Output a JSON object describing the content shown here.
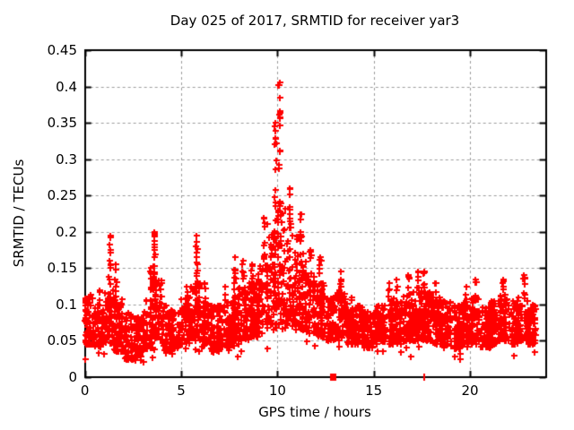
{
  "page": {
    "background": "#ffffff"
  },
  "chart_data": {
    "type": "scatter",
    "title": "Day 025 of 2017, SRMTID for receiver yar3",
    "xlabel": "GPS time / hours",
    "ylabel": "SRMTID / TECUs",
    "xlim": [
      0,
      23.94
    ],
    "ylim": [
      0,
      0.45
    ],
    "xticks": {
      "values": [
        0,
        5,
        10,
        15,
        20
      ],
      "labels": [
        "0",
        "5",
        "10",
        "15",
        "20"
      ]
    },
    "yticks": {
      "values": [
        0,
        0.05,
        0.1,
        0.15,
        0.2,
        0.25,
        0.3,
        0.35,
        0.4,
        0.45
      ],
      "labels": [
        "0",
        "0.05",
        "0.1",
        "0.15",
        "0.2",
        "0.25",
        "0.3",
        "0.35",
        "0.4",
        "0.45"
      ]
    },
    "grid": true,
    "grid_style": "dashed",
    "grid_color": "#9b9b9b",
    "axis_color": "#000000",
    "legend": "none",
    "marker": {
      "shape": "plus",
      "color": "#ff0000",
      "size": 7
    },
    "seed": 20170251,
    "bands_format": [
      "t_start_h",
      "t_end_h",
      "n_core_points",
      "y_low",
      "y_high",
      "n_spike_points",
      "y_max",
      "t_spike_center_h"
    ],
    "bands": [
      [
        0.0,
        0.5,
        70,
        0.045,
        0.115,
        0,
        0.13,
        0
      ],
      [
        0.5,
        1.0,
        65,
        0.04,
        0.1,
        3,
        0.12,
        0.75
      ],
      [
        1.0,
        1.5,
        65,
        0.045,
        0.12,
        12,
        0.195,
        1.3
      ],
      [
        1.5,
        2.0,
        65,
        0.035,
        0.11,
        7,
        0.155,
        1.6
      ],
      [
        2.0,
        2.5,
        60,
        0.025,
        0.09,
        0,
        0.1,
        0
      ],
      [
        2.5,
        3.0,
        60,
        0.03,
        0.085,
        0,
        0.095,
        0
      ],
      [
        3.0,
        3.5,
        65,
        0.04,
        0.11,
        6,
        0.15,
        3.4
      ],
      [
        3.5,
        4.0,
        65,
        0.05,
        0.14,
        14,
        0.2,
        3.6
      ],
      [
        4.0,
        4.5,
        60,
        0.035,
        0.1,
        0,
        0.11,
        0
      ],
      [
        4.5,
        5.0,
        60,
        0.04,
        0.095,
        0,
        0.105,
        0
      ],
      [
        5.0,
        5.5,
        65,
        0.045,
        0.11,
        4,
        0.125,
        5.3
      ],
      [
        5.5,
        6.0,
        65,
        0.05,
        0.135,
        12,
        0.195,
        5.8
      ],
      [
        6.0,
        6.5,
        62,
        0.04,
        0.11,
        3,
        0.13,
        6.2
      ],
      [
        6.5,
        7.0,
        62,
        0.035,
        0.1,
        0,
        0.115,
        0
      ],
      [
        7.0,
        7.5,
        62,
        0.04,
        0.105,
        3,
        0.125,
        7.3
      ],
      [
        7.5,
        8.0,
        65,
        0.05,
        0.125,
        8,
        0.165,
        7.8
      ],
      [
        8.0,
        8.5,
        65,
        0.05,
        0.125,
        6,
        0.16,
        8.2
      ],
      [
        8.5,
        9.0,
        65,
        0.055,
        0.13,
        5,
        0.155,
        8.7
      ],
      [
        9.0,
        9.5,
        68,
        0.06,
        0.155,
        10,
        0.22,
        9.3
      ],
      [
        9.5,
        10.0,
        70,
        0.065,
        0.22,
        14,
        0.35,
        9.9
      ],
      [
        10.0,
        10.5,
        70,
        0.07,
        0.24,
        16,
        0.405,
        10.1
      ],
      [
        10.5,
        11.0,
        68,
        0.07,
        0.2,
        12,
        0.26,
        10.65
      ],
      [
        11.0,
        11.5,
        66,
        0.065,
        0.17,
        8,
        0.225,
        11.2
      ],
      [
        11.5,
        12.0,
        64,
        0.06,
        0.14,
        6,
        0.175,
        11.7
      ],
      [
        12.0,
        12.5,
        64,
        0.055,
        0.13,
        6,
        0.165,
        12.2
      ],
      [
        12.5,
        13.0,
        62,
        0.05,
        0.115,
        0,
        0.13,
        0
      ],
      [
        13.0,
        13.5,
        62,
        0.05,
        0.12,
        5,
        0.145,
        13.3
      ],
      [
        13.5,
        14.0,
        60,
        0.045,
        0.11,
        0,
        0.125,
        0
      ],
      [
        14.0,
        14.5,
        60,
        0.045,
        0.1,
        0,
        0.115,
        0
      ],
      [
        14.5,
        15.0,
        58,
        0.04,
        0.09,
        0,
        0.105,
        0
      ],
      [
        15.0,
        15.5,
        60,
        0.045,
        0.1,
        0,
        0.125,
        0
      ],
      [
        15.5,
        16.0,
        60,
        0.045,
        0.105,
        4,
        0.13,
        15.8
      ],
      [
        16.0,
        16.5,
        62,
        0.05,
        0.11,
        4,
        0.135,
        16.2
      ],
      [
        16.5,
        17.0,
        62,
        0.05,
        0.115,
        5,
        0.14,
        16.8
      ],
      [
        17.0,
        17.5,
        64,
        0.05,
        0.12,
        6,
        0.145,
        17.3
      ],
      [
        17.5,
        18.0,
        64,
        0.05,
        0.12,
        6,
        0.145,
        17.6
      ],
      [
        18.0,
        18.5,
        62,
        0.045,
        0.11,
        3,
        0.13,
        18.2
      ],
      [
        18.5,
        19.0,
        60,
        0.045,
        0.105,
        0,
        0.12,
        0
      ],
      [
        19.0,
        19.5,
        60,
        0.04,
        0.1,
        0,
        0.115,
        0
      ],
      [
        19.5,
        20.0,
        60,
        0.045,
        0.105,
        3,
        0.125,
        19.8
      ],
      [
        20.0,
        20.5,
        62,
        0.045,
        0.11,
        4,
        0.135,
        20.3
      ],
      [
        20.5,
        21.0,
        60,
        0.04,
        0.1,
        0,
        0.12,
        0
      ],
      [
        21.0,
        21.5,
        60,
        0.045,
        0.105,
        0,
        0.125,
        0
      ],
      [
        21.5,
        22.0,
        62,
        0.05,
        0.115,
        5,
        0.135,
        21.7
      ],
      [
        22.0,
        22.5,
        60,
        0.045,
        0.105,
        0,
        0.12,
        0
      ],
      [
        22.5,
        23.0,
        62,
        0.05,
        0.115,
        6,
        0.14,
        22.8
      ],
      [
        23.0,
        23.4,
        50,
        0.045,
        0.1,
        0,
        0.11,
        0
      ]
    ],
    "zero_markers": [
      {
        "x": 12.87,
        "y": 0,
        "shape": "square"
      },
      {
        "x": 17.62,
        "y": 0,
        "shape": "vbar"
      }
    ]
  }
}
